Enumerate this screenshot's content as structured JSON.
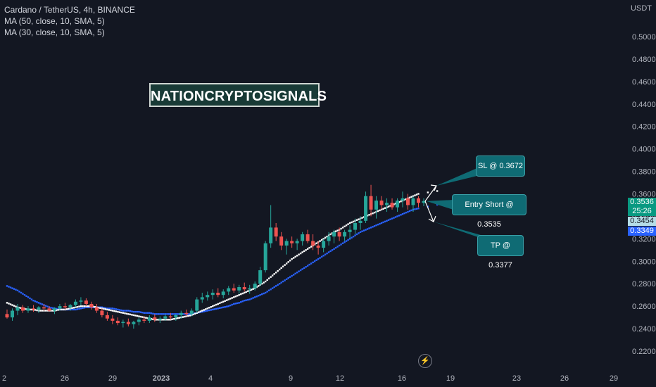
{
  "legend": {
    "symbol_line": "Cardano / TetherUS, 4h, BINANCE",
    "ma1": "MA (50, close, 10, SMA, 5)",
    "ma2": "MA (30, close, 10, SMA, 5)"
  },
  "watermark": "NATIONCRYPTOSIGNALS",
  "currency": "USDT",
  "colors": {
    "background": "#131722",
    "up": "#26a69a",
    "down": "#ef5350",
    "ma50": "#ffffff",
    "ma30": "#2962ff",
    "callout": "#0f6b74"
  },
  "callouts": {
    "sl": "SL @ 0.3672",
    "entry": "Entry Short @ 0.3535",
    "tp": "TP @ 0.3377"
  },
  "price_tags": {
    "last": "0.3536",
    "countdown": "25:26",
    "ma50_value": "0.3454",
    "ma30_value": "0.3349"
  },
  "chart_data": {
    "type": "candlestick",
    "ylim": [
      0.21,
      0.51
    ],
    "y_ticks": [
      "0.5000",
      "0.4800",
      "0.4600",
      "0.4400",
      "0.4200",
      "0.4000",
      "0.3800",
      "0.3600",
      "0.3400",
      "0.3200",
      "0.3000",
      "0.2800",
      "0.2600",
      "0.2400",
      "0.2200"
    ],
    "x_ticks": [
      "2",
      "26",
      "29",
      "2023",
      "4",
      "9",
      "12",
      "16",
      "19",
      "23",
      "26",
      "29"
    ],
    "series": [
      {
        "name": "price",
        "values": [
          [
            0.253,
            0.257,
            0.249,
            0.25
          ],
          [
            0.25,
            0.258,
            0.247,
            0.256
          ],
          [
            0.256,
            0.262,
            0.252,
            0.259
          ],
          [
            0.259,
            0.261,
            0.254,
            0.256
          ],
          [
            0.256,
            0.26,
            0.254,
            0.258
          ],
          [
            0.258,
            0.261,
            0.255,
            0.257
          ],
          [
            0.257,
            0.26,
            0.254,
            0.259
          ],
          [
            0.259,
            0.262,
            0.256,
            0.258
          ],
          [
            0.258,
            0.26,
            0.255,
            0.256
          ],
          [
            0.256,
            0.259,
            0.253,
            0.258
          ],
          [
            0.258,
            0.262,
            0.256,
            0.26
          ],
          [
            0.26,
            0.263,
            0.257,
            0.259
          ],
          [
            0.259,
            0.262,
            0.256,
            0.261
          ],
          [
            0.261,
            0.266,
            0.259,
            0.264
          ],
          [
            0.264,
            0.268,
            0.261,
            0.265
          ],
          [
            0.265,
            0.267,
            0.26,
            0.262
          ],
          [
            0.262,
            0.264,
            0.257,
            0.259
          ],
          [
            0.259,
            0.262,
            0.254,
            0.256
          ],
          [
            0.256,
            0.258,
            0.25,
            0.252
          ],
          [
            0.252,
            0.255,
            0.247,
            0.249
          ],
          [
            0.249,
            0.252,
            0.244,
            0.247
          ],
          [
            0.247,
            0.25,
            0.243,
            0.245
          ],
          [
            0.245,
            0.248,
            0.241,
            0.246
          ],
          [
            0.246,
            0.249,
            0.242,
            0.244
          ],
          [
            0.244,
            0.247,
            0.24,
            0.246
          ],
          [
            0.246,
            0.25,
            0.243,
            0.248
          ],
          [
            0.248,
            0.251,
            0.245,
            0.247
          ],
          [
            0.247,
            0.252,
            0.245,
            0.25
          ],
          [
            0.25,
            0.253,
            0.246,
            0.248
          ],
          [
            0.248,
            0.251,
            0.245,
            0.249
          ],
          [
            0.249,
            0.253,
            0.247,
            0.251
          ],
          [
            0.251,
            0.254,
            0.248,
            0.25
          ],
          [
            0.25,
            0.253,
            0.247,
            0.252
          ],
          [
            0.252,
            0.256,
            0.249,
            0.254
          ],
          [
            0.254,
            0.257,
            0.251,
            0.253
          ],
          [
            0.253,
            0.258,
            0.251,
            0.256
          ],
          [
            0.256,
            0.268,
            0.254,
            0.266
          ],
          [
            0.266,
            0.272,
            0.263,
            0.268
          ],
          [
            0.268,
            0.273,
            0.265,
            0.27
          ],
          [
            0.27,
            0.275,
            0.266,
            0.272
          ],
          [
            0.272,
            0.276,
            0.268,
            0.27
          ],
          [
            0.27,
            0.275,
            0.267,
            0.273
          ],
          [
            0.273,
            0.278,
            0.27,
            0.276
          ],
          [
            0.276,
            0.28,
            0.272,
            0.274
          ],
          [
            0.274,
            0.279,
            0.271,
            0.277
          ],
          [
            0.277,
            0.281,
            0.273,
            0.275
          ],
          [
            0.275,
            0.279,
            0.271,
            0.276
          ],
          [
            0.276,
            0.282,
            0.274,
            0.28
          ],
          [
            0.28,
            0.295,
            0.278,
            0.292
          ],
          [
            0.292,
            0.318,
            0.29,
            0.316
          ],
          [
            0.316,
            0.35,
            0.312,
            0.33
          ],
          [
            0.33,
            0.334,
            0.318,
            0.322
          ],
          [
            0.322,
            0.326,
            0.31,
            0.314
          ],
          [
            0.314,
            0.32,
            0.306,
            0.318
          ],
          [
            0.318,
            0.322,
            0.312,
            0.316
          ],
          [
            0.316,
            0.32,
            0.31,
            0.318
          ],
          [
            0.318,
            0.326,
            0.314,
            0.324
          ],
          [
            0.324,
            0.328,
            0.316,
            0.318
          ],
          [
            0.318,
            0.324,
            0.31,
            0.314
          ],
          [
            0.314,
            0.318,
            0.306,
            0.312
          ],
          [
            0.312,
            0.32,
            0.308,
            0.318
          ],
          [
            0.318,
            0.326,
            0.314,
            0.322
          ],
          [
            0.322,
            0.328,
            0.316,
            0.326
          ],
          [
            0.326,
            0.33,
            0.318,
            0.322
          ],
          [
            0.322,
            0.328,
            0.318,
            0.326
          ],
          [
            0.326,
            0.332,
            0.32,
            0.328
          ],
          [
            0.328,
            0.338,
            0.324,
            0.334
          ],
          [
            0.334,
            0.34,
            0.328,
            0.336
          ],
          [
            0.336,
            0.362,
            0.334,
            0.358
          ],
          [
            0.358,
            0.368,
            0.34,
            0.346
          ],
          [
            0.346,
            0.358,
            0.338,
            0.354
          ],
          [
            0.354,
            0.358,
            0.346,
            0.35
          ],
          [
            0.35,
            0.356,
            0.344,
            0.352
          ],
          [
            0.352,
            0.356,
            0.346,
            0.348
          ],
          [
            0.348,
            0.356,
            0.344,
            0.354
          ],
          [
            0.354,
            0.362,
            0.348,
            0.356
          ],
          [
            0.356,
            0.36,
            0.346,
            0.35
          ],
          [
            0.35,
            0.358,
            0.344,
            0.356
          ],
          [
            0.356,
            0.358,
            0.348,
            0.352
          ],
          [
            0.352,
            0.356,
            0.349,
            0.3536
          ]
        ]
      },
      {
        "name": "MA (50, close, 10, SMA, 5)",
        "values": [
          0.263,
          0.261,
          0.259,
          0.258,
          0.257,
          0.257,
          0.256,
          0.256,
          0.256,
          0.256,
          0.257,
          0.257,
          0.258,
          0.259,
          0.26,
          0.26,
          0.26,
          0.259,
          0.258,
          0.257,
          0.256,
          0.255,
          0.254,
          0.253,
          0.252,
          0.251,
          0.25,
          0.249,
          0.248,
          0.248,
          0.248,
          0.248,
          0.249,
          0.25,
          0.251,
          0.252,
          0.254,
          0.256,
          0.258,
          0.26,
          0.262,
          0.264,
          0.266,
          0.268,
          0.27,
          0.272,
          0.274,
          0.276,
          0.279,
          0.282,
          0.286,
          0.29,
          0.294,
          0.298,
          0.302,
          0.305,
          0.308,
          0.311,
          0.314,
          0.317,
          0.32,
          0.323,
          0.326,
          0.328,
          0.331,
          0.334,
          0.336,
          0.338,
          0.34,
          0.342,
          0.344,
          0.346,
          0.348,
          0.35,
          0.352,
          0.354,
          0.356,
          0.358,
          0.36,
          0.3454
        ]
      },
      {
        "name": "MA (30, close, 10, SMA, 5)",
        "values": [
          0.278,
          0.276,
          0.274,
          0.271,
          0.268,
          0.265,
          0.263,
          0.261,
          0.259,
          0.258,
          0.257,
          0.257,
          0.257,
          0.257,
          0.258,
          0.259,
          0.259,
          0.259,
          0.259,
          0.258,
          0.258,
          0.257,
          0.256,
          0.256,
          0.255,
          0.255,
          0.254,
          0.254,
          0.253,
          0.253,
          0.253,
          0.253,
          0.253,
          0.253,
          0.253,
          0.253,
          0.254,
          0.255,
          0.256,
          0.257,
          0.258,
          0.259,
          0.26,
          0.262,
          0.263,
          0.265,
          0.266,
          0.268,
          0.27,
          0.272,
          0.275,
          0.278,
          0.281,
          0.284,
          0.287,
          0.29,
          0.293,
          0.296,
          0.299,
          0.302,
          0.305,
          0.308,
          0.311,
          0.314,
          0.317,
          0.32,
          0.323,
          0.326,
          0.328,
          0.33,
          0.332,
          0.334,
          0.336,
          0.338,
          0.34,
          0.342,
          0.344,
          0.346,
          0.347,
          0.3349
        ]
      }
    ]
  }
}
